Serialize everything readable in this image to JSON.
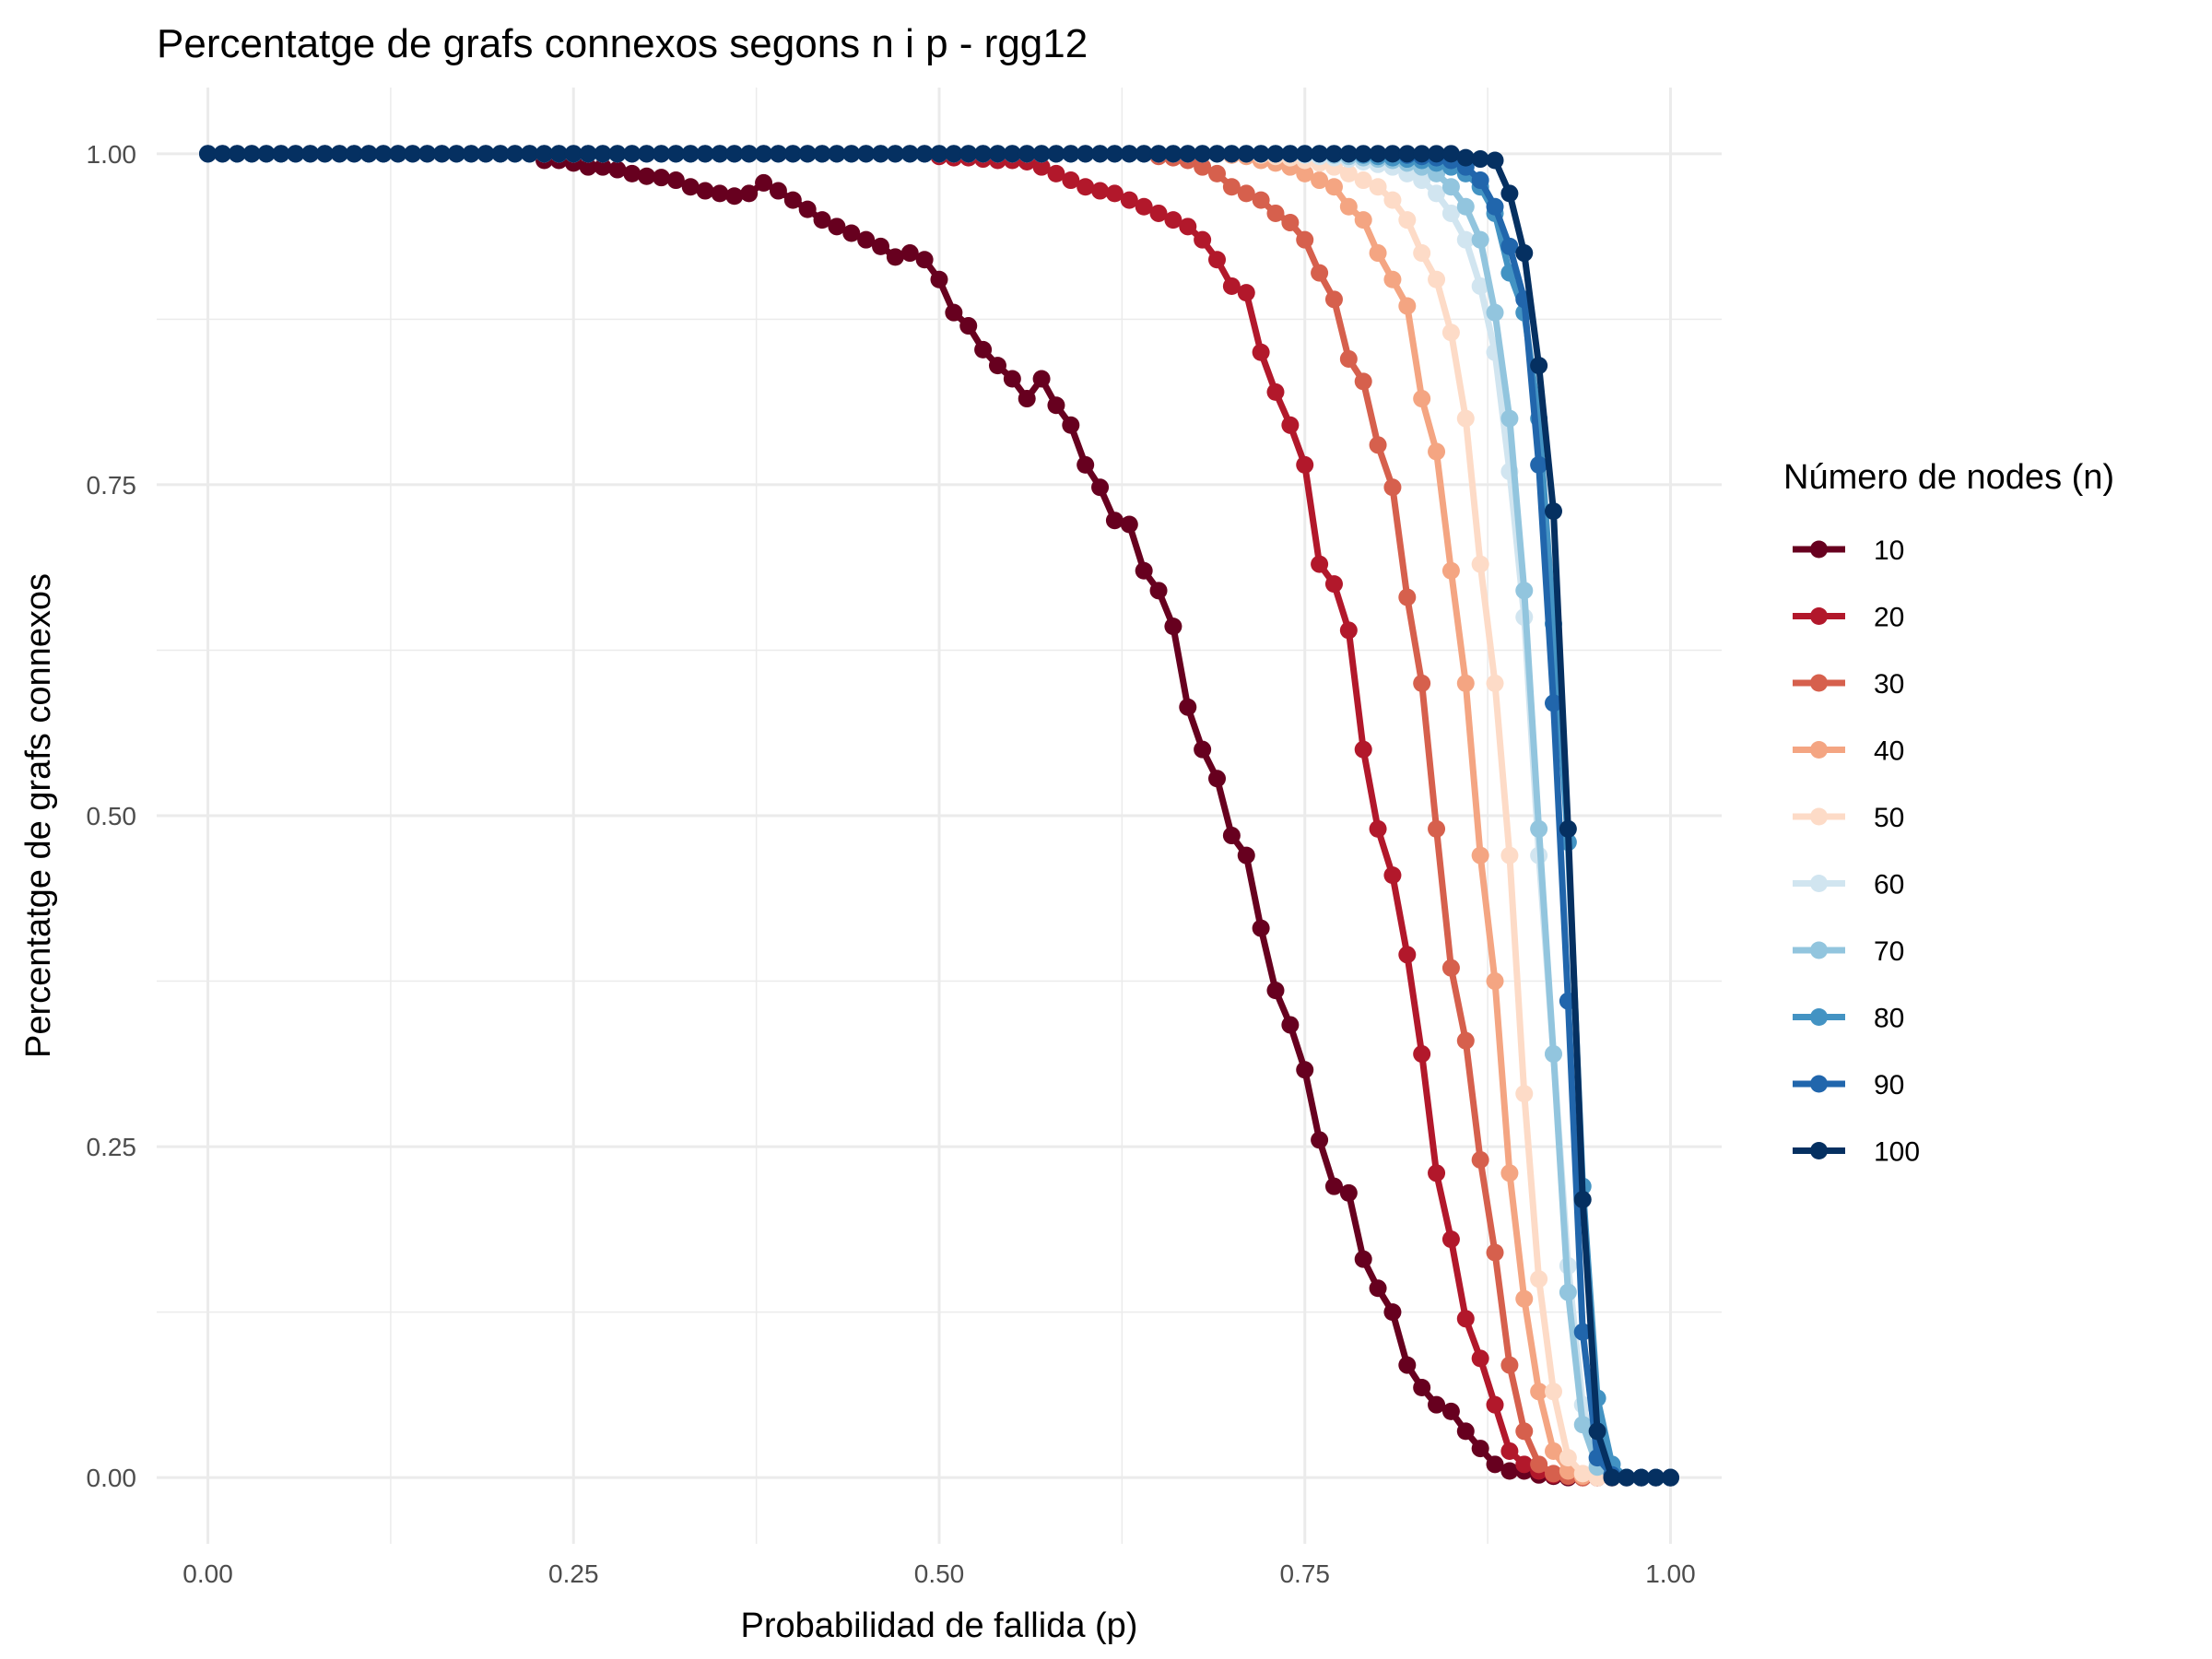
{
  "chart_data": {
    "type": "line",
    "title": "Percentatge de grafs connexos segons n i p - rgg12",
    "xlabel": "Probabilidad de fallida (p)",
    "ylabel": "Percentatge de grafs connexos",
    "xlim": [
      -0.035,
      1.035
    ],
    "ylim": [
      -0.05,
      1.05
    ],
    "x_ticks": [
      0.0,
      0.25,
      0.5,
      0.75,
      1.0
    ],
    "x_tick_labels": [
      "0.00",
      "0.25",
      "0.50",
      "0.75",
      "1.00"
    ],
    "y_ticks": [
      0.0,
      0.25,
      0.5,
      0.75,
      1.0
    ],
    "y_tick_labels": [
      "0.00",
      "0.25",
      "0.50",
      "0.75",
      "1.00"
    ],
    "grid": true,
    "markers": true,
    "legend_title": "Número de nodes (n)",
    "legend_position": "right",
    "x_step": 0.01,
    "series": [
      {
        "name": "10",
        "color": "#67001f",
        "values": [
          1,
          1,
          1,
          1,
          1,
          1,
          1,
          1,
          1,
          1,
          1,
          1,
          1,
          1,
          1,
          1,
          1,
          1,
          1,
          1,
          1,
          1,
          1,
          0.995,
          0.995,
          0.993,
          0.99,
          0.99,
          0.988,
          0.985,
          0.983,
          0.982,
          0.98,
          0.975,
          0.972,
          0.97,
          0.968,
          0.97,
          0.978,
          0.972,
          0.965,
          0.958,
          0.95,
          0.945,
          0.94,
          0.935,
          0.93,
          0.922,
          0.925,
          0.92,
          0.905,
          0.88,
          0.87,
          0.852,
          0.84,
          0.83,
          0.815,
          0.83,
          0.81,
          0.795,
          0.765,
          0.748,
          0.723,
          0.72,
          0.685,
          0.67,
          0.643,
          0.582,
          0.55,
          0.528,
          0.485,
          0.47,
          0.415,
          0.368,
          0.342,
          0.308,
          0.255,
          0.22,
          0.215,
          0.165,
          0.143,
          0.125,
          0.085,
          0.068,
          0.055,
          0.05,
          0.035,
          0.022,
          0.01,
          0.005,
          0.005,
          0.002,
          0.001,
          0,
          0,
          0,
          0,
          0,
          0,
          0,
          0
        ]
      },
      {
        "name": "20",
        "color": "#b2182b",
        "values": [
          1,
          1,
          1,
          1,
          1,
          1,
          1,
          1,
          1,
          1,
          1,
          1,
          1,
          1,
          1,
          1,
          1,
          1,
          1,
          1,
          1,
          1,
          1,
          1,
          1,
          1,
          1,
          1,
          1,
          1,
          1,
          1,
          1,
          1,
          1,
          1,
          1,
          1,
          1,
          1,
          1,
          1,
          1,
          1,
          1,
          1,
          1,
          1,
          1,
          1,
          0.998,
          0.997,
          0.997,
          0.996,
          0.995,
          0.995,
          0.994,
          0.99,
          0.985,
          0.98,
          0.975,
          0.972,
          0.97,
          0.965,
          0.96,
          0.955,
          0.95,
          0.945,
          0.935,
          0.92,
          0.9,
          0.895,
          0.85,
          0.82,
          0.795,
          0.765,
          0.69,
          0.675,
          0.64,
          0.55,
          0.49,
          0.455,
          0.395,
          0.32,
          0.23,
          0.18,
          0.12,
          0.09,
          0.055,
          0.02,
          0.01,
          0.005,
          0.002,
          0.001,
          0,
          0,
          0,
          0,
          0,
          0,
          0
        ]
      },
      {
        "name": "30",
        "color": "#d6604d",
        "values": [
          1,
          1,
          1,
          1,
          1,
          1,
          1,
          1,
          1,
          1,
          1,
          1,
          1,
          1,
          1,
          1,
          1,
          1,
          1,
          1,
          1,
          1,
          1,
          1,
          1,
          1,
          1,
          1,
          1,
          1,
          1,
          1,
          1,
          1,
          1,
          1,
          1,
          1,
          1,
          1,
          1,
          1,
          1,
          1,
          1,
          1,
          1,
          1,
          1,
          1,
          1,
          1,
          1,
          1,
          1,
          1,
          1,
          1,
          1,
          1,
          1,
          1,
          1,
          1,
          1,
          0.998,
          0.997,
          0.995,
          0.99,
          0.985,
          0.975,
          0.97,
          0.965,
          0.955,
          0.948,
          0.935,
          0.91,
          0.89,
          0.845,
          0.828,
          0.78,
          0.748,
          0.665,
          0.6,
          0.49,
          0.385,
          0.33,
          0.24,
          0.17,
          0.085,
          0.035,
          0.01,
          0.003,
          0.001,
          0,
          0,
          0,
          0,
          0,
          0,
          0
        ]
      },
      {
        "name": "40",
        "color": "#f4a582",
        "values": [
          1,
          1,
          1,
          1,
          1,
          1,
          1,
          1,
          1,
          1,
          1,
          1,
          1,
          1,
          1,
          1,
          1,
          1,
          1,
          1,
          1,
          1,
          1,
          1,
          1,
          1,
          1,
          1,
          1,
          1,
          1,
          1,
          1,
          1,
          1,
          1,
          1,
          1,
          1,
          1,
          1,
          1,
          1,
          1,
          1,
          1,
          1,
          1,
          1,
          1,
          1,
          1,
          1,
          1,
          1,
          1,
          1,
          1,
          1,
          1,
          1,
          1,
          1,
          1,
          1,
          1,
          1,
          1,
          1,
          1,
          0.999,
          0.998,
          0.995,
          0.993,
          0.99,
          0.985,
          0.98,
          0.975,
          0.96,
          0.95,
          0.925,
          0.905,
          0.885,
          0.815,
          0.775,
          0.685,
          0.6,
          0.47,
          0.375,
          0.23,
          0.135,
          0.065,
          0.02,
          0.005,
          0.001,
          0,
          0,
          0,
          0,
          0,
          0
        ]
      },
      {
        "name": "50",
        "color": "#fddbc7",
        "values": [
          1,
          1,
          1,
          1,
          1,
          1,
          1,
          1,
          1,
          1,
          1,
          1,
          1,
          1,
          1,
          1,
          1,
          1,
          1,
          1,
          1,
          1,
          1,
          1,
          1,
          1,
          1,
          1,
          1,
          1,
          1,
          1,
          1,
          1,
          1,
          1,
          1,
          1,
          1,
          1,
          1,
          1,
          1,
          1,
          1,
          1,
          1,
          1,
          1,
          1,
          1,
          1,
          1,
          1,
          1,
          1,
          1,
          1,
          1,
          1,
          1,
          1,
          1,
          1,
          1,
          1,
          1,
          1,
          1,
          1,
          1,
          1,
          0.999,
          0.998,
          0.997,
          0.995,
          0.993,
          0.99,
          0.985,
          0.98,
          0.975,
          0.965,
          0.95,
          0.925,
          0.905,
          0.865,
          0.8,
          0.69,
          0.6,
          0.47,
          0.29,
          0.15,
          0.065,
          0.015,
          0.003,
          0,
          0,
          0,
          0,
          0,
          0
        ]
      },
      {
        "name": "60",
        "color": "#d1e5f0",
        "values": [
          1,
          1,
          1,
          1,
          1,
          1,
          1,
          1,
          1,
          1,
          1,
          1,
          1,
          1,
          1,
          1,
          1,
          1,
          1,
          1,
          1,
          1,
          1,
          1,
          1,
          1,
          1,
          1,
          1,
          1,
          1,
          1,
          1,
          1,
          1,
          1,
          1,
          1,
          1,
          1,
          1,
          1,
          1,
          1,
          1,
          1,
          1,
          1,
          1,
          1,
          1,
          1,
          1,
          1,
          1,
          1,
          1,
          1,
          1,
          1,
          1,
          1,
          1,
          1,
          1,
          1,
          1,
          1,
          1,
          1,
          1,
          1,
          1,
          1,
          1,
          0.999,
          0.998,
          0.997,
          0.996,
          0.994,
          0.992,
          0.99,
          0.985,
          0.98,
          0.97,
          0.955,
          0.935,
          0.9,
          0.85,
          0.76,
          0.65,
          0.47,
          0.32,
          0.16,
          0.055,
          0.012,
          0.002,
          0,
          0,
          0,
          0
        ]
      },
      {
        "name": "70",
        "color": "#92c5de",
        "values": [
          1,
          1,
          1,
          1,
          1,
          1,
          1,
          1,
          1,
          1,
          1,
          1,
          1,
          1,
          1,
          1,
          1,
          1,
          1,
          1,
          1,
          1,
          1,
          1,
          1,
          1,
          1,
          1,
          1,
          1,
          1,
          1,
          1,
          1,
          1,
          1,
          1,
          1,
          1,
          1,
          1,
          1,
          1,
          1,
          1,
          1,
          1,
          1,
          1,
          1,
          1,
          1,
          1,
          1,
          1,
          1,
          1,
          1,
          1,
          1,
          1,
          1,
          1,
          1,
          1,
          1,
          1,
          1,
          1,
          1,
          1,
          1,
          1,
          1,
          1,
          1,
          1,
          0.999,
          0.998,
          0.997,
          0.996,
          0.995,
          0.993,
          0.99,
          0.985,
          0.975,
          0.96,
          0.935,
          0.88,
          0.8,
          0.67,
          0.49,
          0.32,
          0.14,
          0.04,
          0.008,
          0.001,
          0,
          0,
          0,
          0
        ]
      },
      {
        "name": "80",
        "color": "#4393c3",
        "values": [
          1,
          1,
          1,
          1,
          1,
          1,
          1,
          1,
          1,
          1,
          1,
          1,
          1,
          1,
          1,
          1,
          1,
          1,
          1,
          1,
          1,
          1,
          1,
          1,
          1,
          1,
          1,
          1,
          1,
          1,
          1,
          1,
          1,
          1,
          1,
          1,
          1,
          1,
          1,
          1,
          1,
          1,
          1,
          1,
          1,
          1,
          1,
          1,
          1,
          1,
          1,
          1,
          1,
          1,
          1,
          1,
          1,
          1,
          1,
          1,
          1,
          1,
          1,
          1,
          1,
          1,
          1,
          1,
          1,
          1,
          1,
          1,
          1,
          1,
          1,
          1,
          1,
          1,
          1,
          0.999,
          0.998,
          0.997,
          0.996,
          0.995,
          0.993,
          0.99,
          0.985,
          0.975,
          0.955,
          0.91,
          0.88,
          0.8,
          0.645,
          0.48,
          0.22,
          0.06,
          0.01,
          0,
          0,
          0,
          0
        ]
      },
      {
        "name": "90",
        "color": "#2166ac",
        "values": [
          1,
          1,
          1,
          1,
          1,
          1,
          1,
          1,
          1,
          1,
          1,
          1,
          1,
          1,
          1,
          1,
          1,
          1,
          1,
          1,
          1,
          1,
          1,
          1,
          1,
          1,
          1,
          1,
          1,
          1,
          1,
          1,
          1,
          1,
          1,
          1,
          1,
          1,
          1,
          1,
          1,
          1,
          1,
          1,
          1,
          1,
          1,
          1,
          1,
          1,
          1,
          1,
          1,
          1,
          1,
          1,
          1,
          1,
          1,
          1,
          1,
          1,
          1,
          1,
          1,
          1,
          1,
          1,
          1,
          1,
          1,
          1,
          1,
          1,
          1,
          1,
          1,
          1,
          1,
          1,
          1,
          1,
          0.999,
          0.998,
          0.997,
          0.995,
          0.99,
          0.98,
          0.96,
          0.93,
          0.89,
          0.765,
          0.585,
          0.36,
          0.11,
          0.015,
          0.002,
          0,
          0,
          0,
          0
        ]
      },
      {
        "name": "100",
        "color": "#053061",
        "values": [
          1,
          1,
          1,
          1,
          1,
          1,
          1,
          1,
          1,
          1,
          1,
          1,
          1,
          1,
          1,
          1,
          1,
          1,
          1,
          1,
          1,
          1,
          1,
          1,
          1,
          1,
          1,
          1,
          1,
          1,
          1,
          1,
          1,
          1,
          1,
          1,
          1,
          1,
          1,
          1,
          1,
          1,
          1,
          1,
          1,
          1,
          1,
          1,
          1,
          1,
          1,
          1,
          1,
          1,
          1,
          1,
          1,
          1,
          1,
          1,
          1,
          1,
          1,
          1,
          1,
          1,
          1,
          1,
          1,
          1,
          1,
          1,
          1,
          1,
          1,
          1,
          1,
          1,
          1,
          1,
          1,
          1,
          1,
          1,
          1,
          1,
          0.997,
          0.996,
          0.995,
          0.97,
          0.925,
          0.84,
          0.73,
          0.49,
          0.21,
          0.035,
          0,
          0,
          0,
          0,
          0
        ]
      }
    ]
  }
}
